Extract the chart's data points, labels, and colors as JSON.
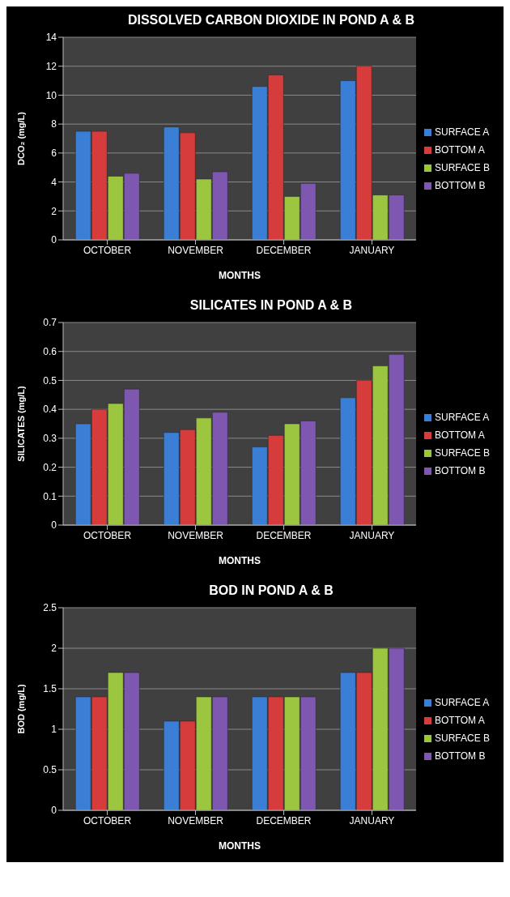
{
  "chart_data": [
    {
      "type": "bar",
      "title": "DISSOLVED CARBON DIOXIDE IN POND A & B",
      "xlabel": "MONTHS",
      "ylabel": "DCO₂ (mg/L)",
      "categories": [
        "OCTOBER",
        "NOVEMBER",
        "DECEMBER",
        "JANUARY"
      ],
      "series": [
        {
          "name": "SURFACE A",
          "color": "#3a7fd5",
          "values": [
            7.5,
            7.8,
            10.6,
            11.0
          ]
        },
        {
          "name": "BOTTOM A",
          "color": "#d63c3c",
          "values": [
            7.5,
            7.4,
            11.4,
            12.0
          ]
        },
        {
          "name": "SURFACE B",
          "color": "#9cc640",
          "values": [
            4.4,
            4.2,
            3.0,
            3.1
          ]
        },
        {
          "name": "BOTTOM B",
          "color": "#7e57b0",
          "values": [
            4.6,
            4.7,
            3.9,
            3.1
          ]
        }
      ],
      "ylim": [
        0,
        14
      ],
      "yticks": [
        0,
        2,
        4,
        6,
        8,
        10,
        12,
        14
      ],
      "grid": "y",
      "legend": "right"
    },
    {
      "type": "bar",
      "title": "SILICATES IN POND A & B",
      "xlabel": "MONTHS",
      "ylabel": "SILICATES (mg/L)",
      "categories": [
        "OCTOBER",
        "NOVEMBER",
        "DECEMBER",
        "JANUARY"
      ],
      "series": [
        {
          "name": "SURFACE A",
          "color": "#3a7fd5",
          "values": [
            0.35,
            0.32,
            0.27,
            0.44
          ]
        },
        {
          "name": "BOTTOM A",
          "color": "#d63c3c",
          "values": [
            0.4,
            0.33,
            0.31,
            0.5
          ]
        },
        {
          "name": "SURFACE B",
          "color": "#9cc640",
          "values": [
            0.42,
            0.37,
            0.35,
            0.55
          ]
        },
        {
          "name": "BOTTOM B",
          "color": "#7e57b0",
          "values": [
            0.47,
            0.39,
            0.36,
            0.59
          ]
        }
      ],
      "ylim": [
        0,
        0.7
      ],
      "yticks": [
        0,
        0.1,
        0.2,
        0.3,
        0.4,
        0.5,
        0.6,
        0.7
      ],
      "grid": "y",
      "legend": "right"
    },
    {
      "type": "bar",
      "title": "BOD IN POND A & B",
      "xlabel": "MONTHS",
      "ylabel": "BOD  (mg/L)",
      "categories": [
        "OCTOBER",
        "NOVEMBER",
        "DECEMBER",
        "JANUARY"
      ],
      "series": [
        {
          "name": "SURFACE A",
          "color": "#3a7fd5",
          "values": [
            1.4,
            1.1,
            1.4,
            1.7
          ]
        },
        {
          "name": "BOTTOM A",
          "color": "#d63c3c",
          "values": [
            1.4,
            1.1,
            1.4,
            1.7
          ]
        },
        {
          "name": "SURFACE B",
          "color": "#9cc640",
          "values": [
            1.7,
            1.4,
            1.4,
            2.0
          ]
        },
        {
          "name": "BOTTOM B",
          "color": "#7e57b0",
          "values": [
            1.7,
            1.4,
            1.4,
            2.0
          ]
        }
      ],
      "ylim": [
        0,
        2.5
      ],
      "yticks": [
        0,
        0.5,
        1,
        1.5,
        2,
        2.5
      ],
      "grid": "y",
      "legend": "right"
    }
  ]
}
